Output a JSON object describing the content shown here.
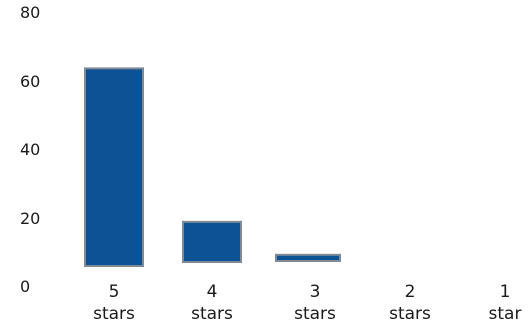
{
  "chart_data": {
    "type": "bar",
    "categories": [
      [
        "5",
        "stars"
      ],
      [
        "4",
        "stars"
      ],
      [
        "3",
        "stars"
      ],
      [
        "2",
        "stars"
      ],
      [
        "1",
        "star"
      ]
    ],
    "values": [
      64,
      13,
      2,
      0,
      0
    ],
    "ylim": [
      0,
      80
    ],
    "yticks": [
      "0",
      "20",
      "40",
      "60",
      "80"
    ],
    "grid": false,
    "legend": "none",
    "colors": {
      "bar_fill": "#0b5394",
      "bar_stroke": "#7f8a96",
      "text": "#1a1a1a"
    }
  }
}
